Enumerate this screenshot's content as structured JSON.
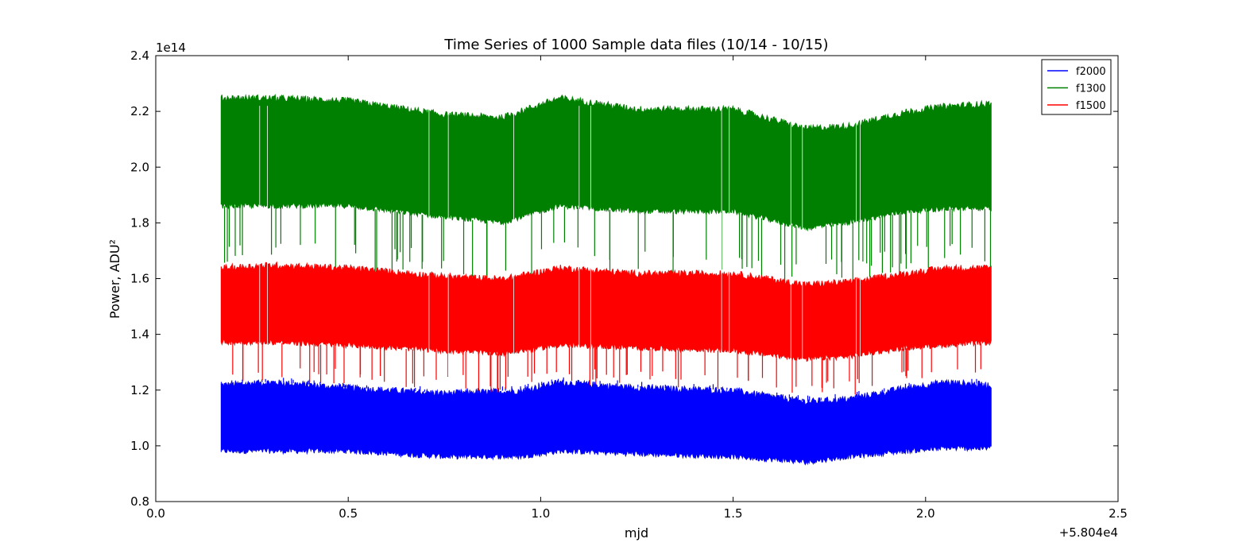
{
  "chart_data": {
    "type": "line",
    "title": "Time Series of 1000 Sample data files (10/14 - 10/15)",
    "xlabel": "mjd",
    "ylabel": "Power, ADU²",
    "x_offset_label": "+5.804e4",
    "y_scale_label": "1e14",
    "xlim": [
      0.0,
      2.5
    ],
    "ylim": [
      0.8,
      2.4
    ],
    "x_ticks": [
      "0.0",
      "0.5",
      "1.0",
      "1.5",
      "2.0",
      "2.5"
    ],
    "y_ticks": [
      "0.8",
      "1.0",
      "1.2",
      "1.4",
      "1.6",
      "1.8",
      "2.0",
      "2.2",
      "2.4"
    ],
    "grid": false,
    "legend_position": "top-right",
    "colors": {
      "f2000": "#0000ff",
      "f1300": "#008000",
      "f1500": "#ff0000"
    },
    "x_range_of_data": [
      0.17,
      2.17
    ],
    "series": [
      {
        "name": "f2000",
        "color": "#0000ff",
        "x": [
          0.17,
          0.3,
          0.5,
          0.75,
          0.95,
          1.05,
          1.25,
          1.5,
          1.69,
          1.8,
          1.95,
          2.05,
          2.17
        ],
        "upper": [
          1.22,
          1.23,
          1.21,
          1.19,
          1.2,
          1.23,
          1.21,
          1.2,
          1.16,
          1.17,
          1.21,
          1.23,
          1.22
        ],
        "lower": [
          0.98,
          0.98,
          0.98,
          0.96,
          0.96,
          0.98,
          0.97,
          0.96,
          0.94,
          0.96,
          0.98,
          0.99,
          0.99
        ]
      },
      {
        "name": "f1300",
        "color": "#008000",
        "x": [
          0.17,
          0.3,
          0.5,
          0.75,
          0.9,
          1.05,
          1.25,
          1.5,
          1.69,
          1.8,
          1.95,
          2.05,
          2.17
        ],
        "upper": [
          2.25,
          2.25,
          2.24,
          2.19,
          2.18,
          2.25,
          2.21,
          2.21,
          2.14,
          2.15,
          2.2,
          2.22,
          2.23
        ],
        "lower": [
          1.86,
          1.86,
          1.86,
          1.82,
          1.8,
          1.86,
          1.84,
          1.84,
          1.78,
          1.8,
          1.84,
          1.85,
          1.85
        ]
      },
      {
        "name": "f1500",
        "color": "#ff0000",
        "x": [
          0.17,
          0.3,
          0.5,
          0.75,
          0.9,
          1.05,
          1.25,
          1.5,
          1.69,
          1.8,
          1.95,
          2.05,
          2.17
        ],
        "upper": [
          1.64,
          1.65,
          1.64,
          1.61,
          1.6,
          1.64,
          1.62,
          1.62,
          1.58,
          1.59,
          1.62,
          1.64,
          1.64
        ],
        "lower": [
          1.37,
          1.37,
          1.36,
          1.34,
          1.33,
          1.36,
          1.35,
          1.34,
          1.31,
          1.32,
          1.35,
          1.36,
          1.37
        ]
      }
    ]
  }
}
